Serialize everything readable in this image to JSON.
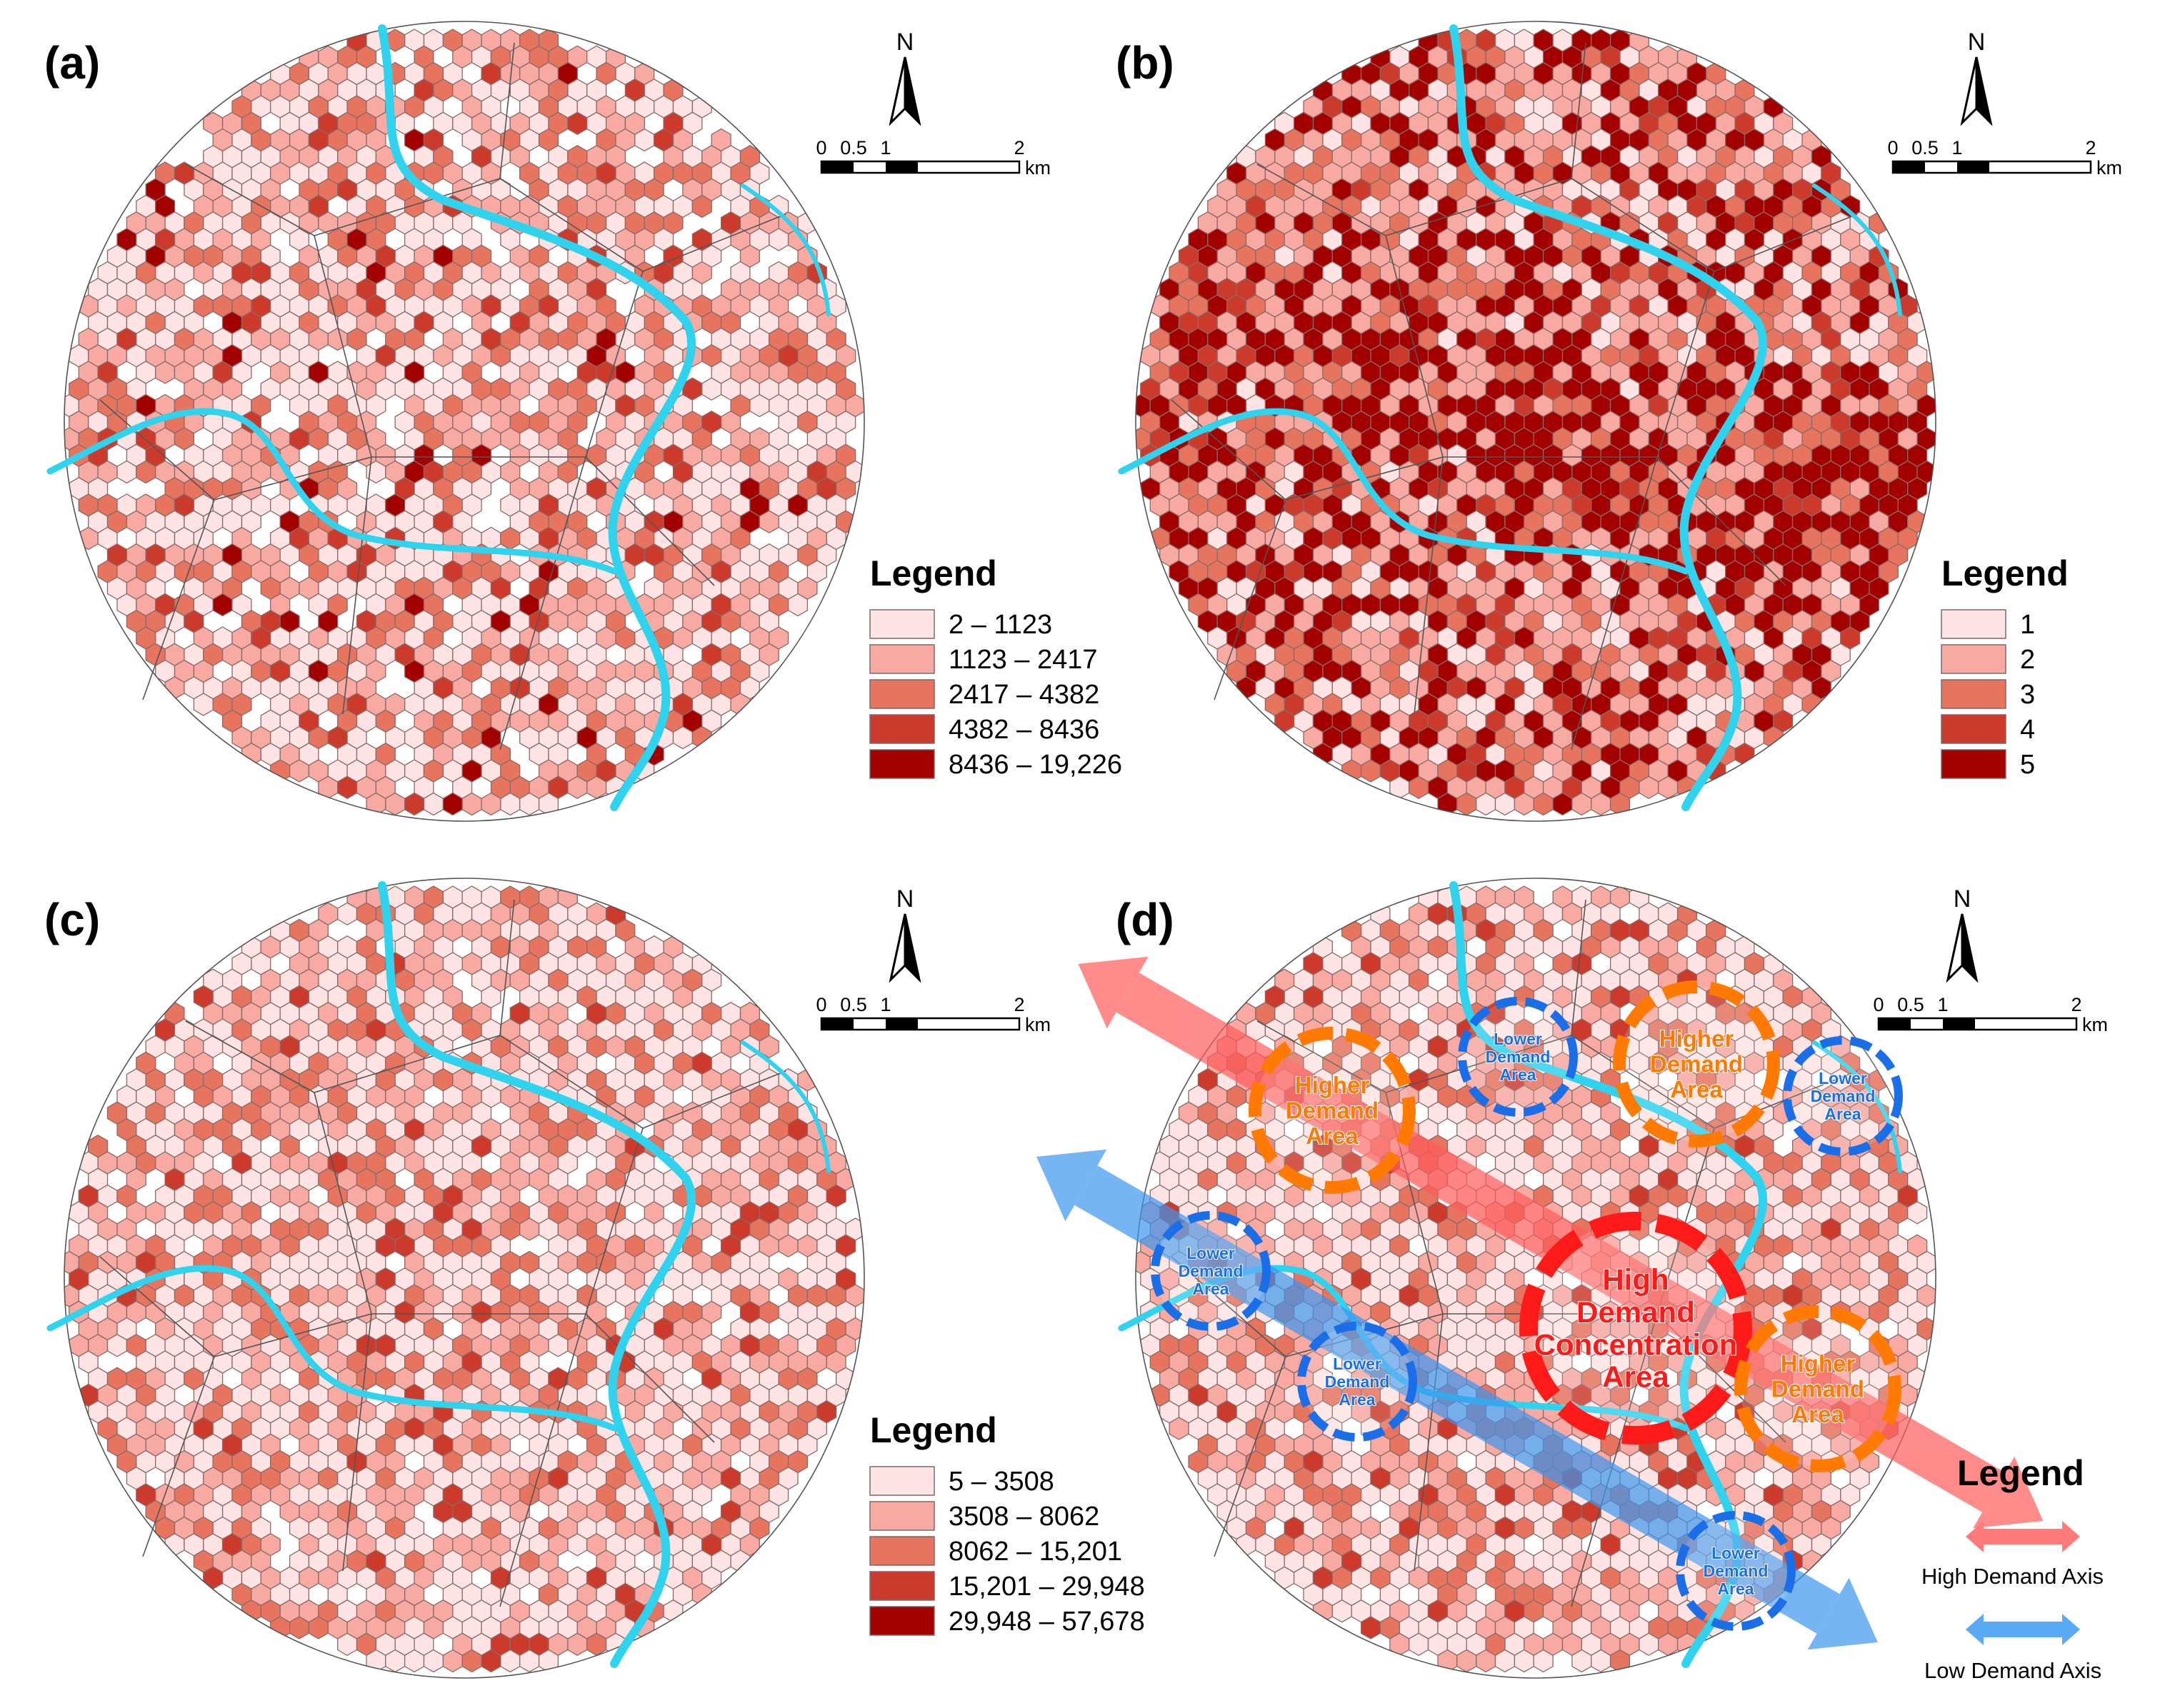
{
  "colors": {
    "class": [
      "#fde3e3",
      "#f7a9a2",
      "#e6745f",
      "#cc3a2b",
      "#a30000"
    ],
    "river": "#2fd3ee",
    "orange": "#ff7a00",
    "red": "#ff1a1a",
    "blue": "#1a6fe8",
    "high_axis": "#ff6b6b",
    "low_axis": "#5aa9f5"
  },
  "scale_bar": {
    "labels": [
      "0",
      "0.5",
      "1",
      "2"
    ],
    "unit": "km"
  },
  "north_label": "N",
  "panels": [
    {
      "id": "a",
      "label": "(a)",
      "legend_title": "Legend",
      "legend_items": [
        "2 – 1123",
        "1123 – 2417",
        "2417 – 4382",
        "4382 – 8436",
        "8436 – 19,226"
      ]
    },
    {
      "id": "b",
      "label": "(b)",
      "legend_title": "Legend",
      "legend_items": [
        "1",
        "2",
        "3",
        "4",
        "5"
      ]
    },
    {
      "id": "c",
      "label": "(c)",
      "legend_title": "Legend",
      "legend_items": [
        "5 – 3508",
        "3508 – 8062",
        "8062 – 15,201",
        "15,201 – 29,948",
        "29,948 – 57,678"
      ]
    },
    {
      "id": "d",
      "label": "(d)",
      "legend_title": "Legend",
      "axes": {
        "high": "High Demand Axis",
        "low": "Low Demand Axis"
      },
      "annotations": [
        {
          "kind": "high-concentration",
          "lines": [
            "High",
            "Demand",
            "Concentration",
            "Area"
          ]
        },
        {
          "kind": "higher",
          "lines": [
            "Higher",
            "Demand",
            "Area"
          ]
        },
        {
          "kind": "higher",
          "lines": [
            "Higher",
            "Demand",
            "Area"
          ]
        },
        {
          "kind": "higher",
          "lines": [
            "Higher",
            "Demand",
            "Area"
          ]
        },
        {
          "kind": "lower",
          "lines": [
            "Lower",
            "Demand",
            "Area"
          ]
        },
        {
          "kind": "lower",
          "lines": [
            "Lower",
            "Demand",
            "Area"
          ]
        },
        {
          "kind": "lower",
          "lines": [
            "Lower",
            "Demand",
            "Area"
          ]
        },
        {
          "kind": "lower",
          "lines": [
            "Lower",
            "Demand",
            "Area"
          ]
        },
        {
          "kind": "lower",
          "lines": [
            "Lower",
            "Demand",
            "Area"
          ]
        }
      ]
    }
  ]
}
